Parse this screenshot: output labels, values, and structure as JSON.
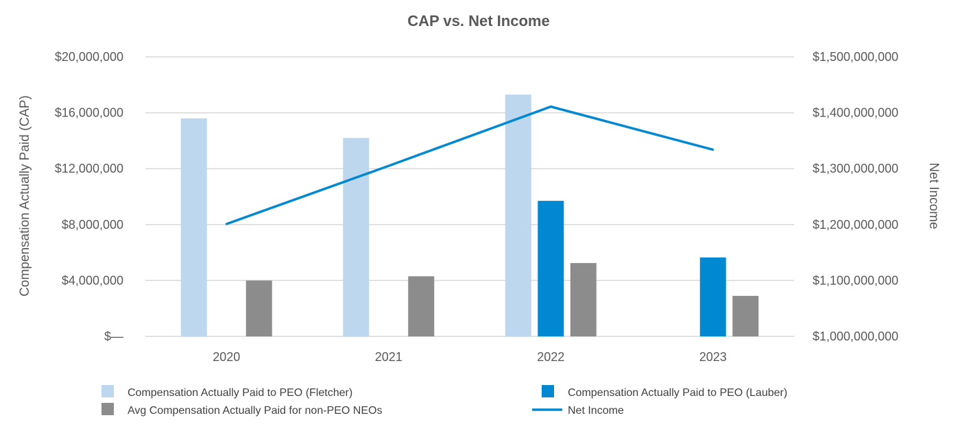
{
  "chart_data": {
    "type": "bar",
    "title": "CAP vs. Net Income",
    "categories": [
      "2020",
      "2021",
      "2022",
      "2023"
    ],
    "ylabel": "Compensation Actually Paid (CAP)",
    "y2label": "Net Income",
    "ylim": [
      0,
      20000000
    ],
    "y2lim": [
      1000000000,
      1500000000
    ],
    "yticks": [
      0,
      4000000,
      8000000,
      12000000,
      16000000,
      20000000
    ],
    "ytick_labels": [
      "$—",
      "$4,000,000",
      "$8,000,000",
      "$12,000,000",
      "$16,000,000",
      "$20,000,000"
    ],
    "y2ticks": [
      1000000000,
      1100000000,
      1200000000,
      1300000000,
      1400000000,
      1500000000
    ],
    "y2tick_labels": [
      "$1,000,000,000",
      "$1,100,000,000",
      "$1,200,000,000",
      "$1,300,000,000",
      "$1,400,000,000",
      "$1,500,000,000"
    ],
    "grid": true,
    "legend_position": "bottom",
    "series": [
      {
        "name": "Compensation Actually Paid to PEO (Fletcher)",
        "type": "bar",
        "axis": "left",
        "color": "#bdd7ee",
        "values": [
          15600000,
          14200000,
          17300000,
          null
        ]
      },
      {
        "name": "Compensation Actually Paid to PEO (Lauber)",
        "type": "bar",
        "axis": "left",
        "color": "#0088d1",
        "values": [
          null,
          null,
          9700000,
          5650000
        ]
      },
      {
        "name": "Avg Compensation Actually Paid for non-PEO NEOs",
        "type": "bar",
        "axis": "left",
        "color": "#8c8c8c",
        "values": [
          4000000,
          4300000,
          5250000,
          2900000
        ]
      },
      {
        "name": "Net Income",
        "type": "line",
        "axis": "right",
        "color": "#0088d1",
        "values": [
          1201000000,
          1305000000,
          1411000000,
          1334000000
        ]
      }
    ]
  }
}
